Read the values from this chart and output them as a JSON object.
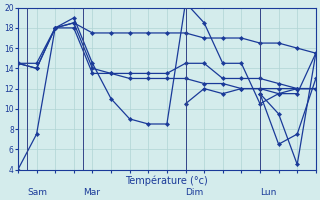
{
  "background_color": "#d4ecec",
  "grid_color": "#b0d4d4",
  "line_color": "#1a3a99",
  "xlabel": "Température (°c)",
  "ylim": [
    4,
    20
  ],
  "yticks": [
    4,
    6,
    8,
    10,
    12,
    14,
    16,
    18,
    20
  ],
  "xlim": [
    0,
    16
  ],
  "day_labels": [
    "Sam",
    "Mar",
    "Dim",
    "Lun"
  ],
  "day_positions": [
    0.5,
    3.5,
    9.0,
    13.0
  ],
  "vline_positions": [
    0.5,
    3.5,
    9.0,
    13.0
  ],
  "series": [
    {
      "x": [
        0,
        1,
        2,
        3,
        4,
        5,
        6,
        7,
        8,
        9,
        10,
        11,
        12,
        13,
        14,
        15,
        16
      ],
      "y": [
        4,
        7.5,
        18,
        19,
        14.5,
        11,
        9,
        8.5,
        8.5,
        20.5,
        18.5,
        14.5,
        14.5,
        10.5,
        11.5,
        12,
        12
      ]
    },
    {
      "x": [
        0,
        1,
        2,
        3,
        4,
        5,
        6,
        7,
        8,
        9,
        10,
        11,
        12,
        13,
        14,
        15,
        16
      ],
      "y": [
        14.5,
        14.5,
        18,
        18.5,
        17.5,
        17.5,
        17.5,
        17.5,
        17.5,
        17.5,
        17,
        17,
        17,
        16.5,
        16.5,
        16,
        15.5
      ]
    },
    {
      "x": [
        0,
        1,
        2,
        3,
        4,
        5,
        6,
        7,
        8,
        9,
        10,
        11,
        12,
        13,
        14,
        15,
        16
      ],
      "y": [
        14.5,
        14,
        18,
        18.5,
        14,
        13.5,
        13.5,
        13.5,
        13.5,
        14.5,
        14.5,
        13,
        13,
        13,
        12.5,
        12,
        12
      ]
    },
    {
      "x": [
        0,
        1,
        2,
        3,
        4,
        5,
        6,
        7,
        8,
        9,
        10,
        11,
        12,
        13,
        14,
        15,
        16
      ],
      "y": [
        14.5,
        14,
        18,
        18,
        13.5,
        13.5,
        13,
        13,
        13,
        13,
        12.5,
        12.5,
        12,
        12,
        11.5,
        11.5,
        15.5
      ]
    },
    {
      "x": [
        9,
        10,
        11,
        12,
        13,
        14,
        15,
        16
      ],
      "y": [
        10.5,
        12,
        11.5,
        12,
        12,
        12,
        12,
        12
      ]
    },
    {
      "x": [
        13,
        14,
        15,
        16
      ],
      "y": [
        11.5,
        6.5,
        7.5,
        13
      ]
    },
    {
      "x": [
        13,
        14,
        15,
        16
      ],
      "y": [
        11.5,
        9.5,
        4.5,
        15.5
      ]
    }
  ]
}
